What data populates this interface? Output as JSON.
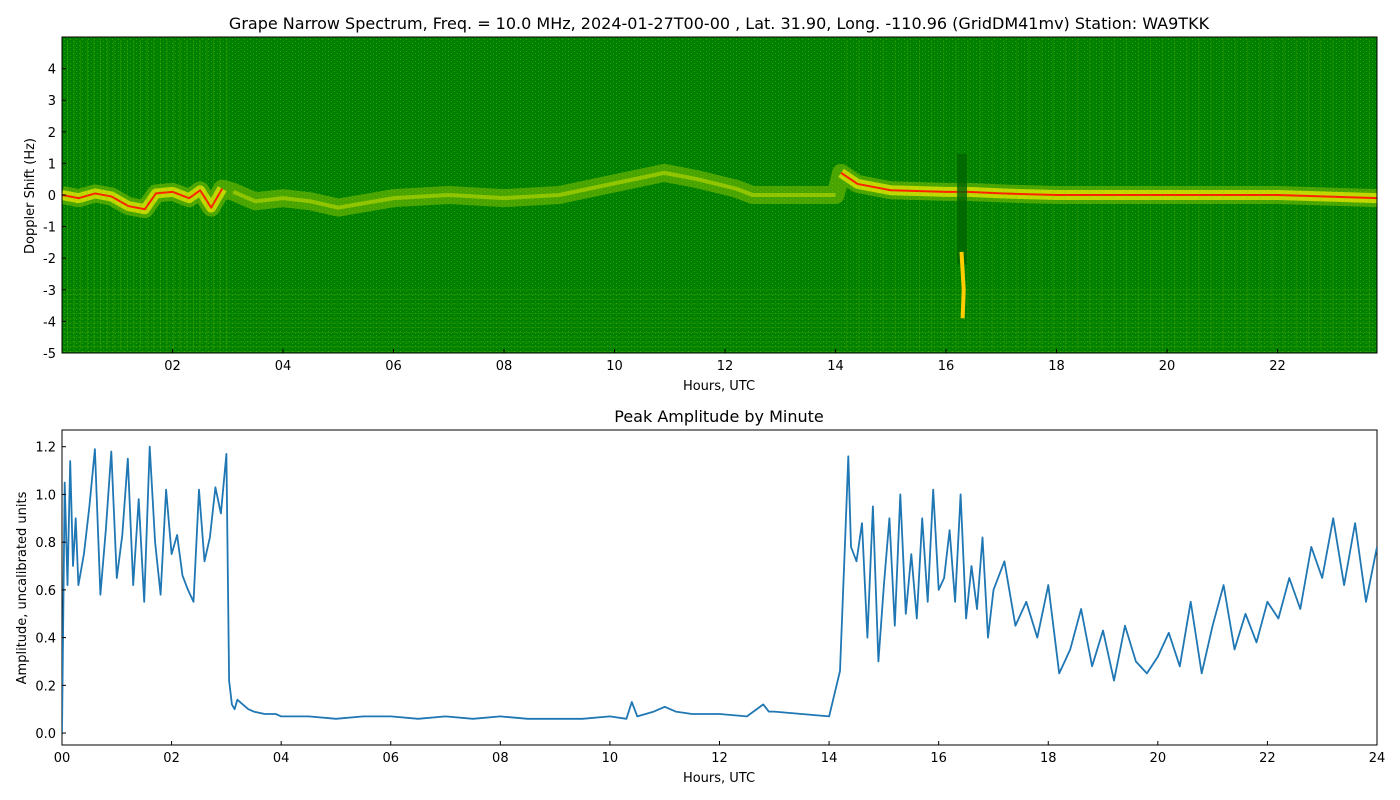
{
  "chart_data": [
    {
      "type": "heatmap",
      "title": "Grape Narrow Spectrum, Freq. = 10.0 MHz, 2024-01-27T00-00 , Lat.  31.90, Long. -110.96 (GridDM41mv) Station: WA9TKK",
      "xlabel": "Hours, UTC",
      "ylabel": "Doppler Shift (Hz)",
      "xlim": [
        0,
        23.8
      ],
      "ylim": [
        -5,
        5
      ],
      "x_ticks": [
        "02",
        "04",
        "06",
        "08",
        "10",
        "12",
        "14",
        "16",
        "18",
        "20",
        "22"
      ],
      "x_tick_values": [
        2,
        4,
        6,
        8,
        10,
        12,
        14,
        16,
        18,
        20,
        22
      ],
      "y_ticks": [
        "-5",
        "-4",
        "-3",
        "-2",
        "-1",
        "0",
        "1",
        "2",
        "3",
        "4"
      ],
      "y_tick_values": [
        -5,
        -4,
        -3,
        -2,
        -1,
        0,
        1,
        2,
        3,
        4
      ],
      "colors": {
        "background": "#008000",
        "mid": "#e6e600",
        "peak": "#ff2000"
      },
      "carrier_trace": [
        [
          0,
          0
        ],
        [
          0.3,
          -0.1
        ],
        [
          0.6,
          0.05
        ],
        [
          0.9,
          -0.05
        ],
        [
          1.2,
          -0.35
        ],
        [
          1.5,
          -0.45
        ],
        [
          1.7,
          0.05
        ],
        [
          2.0,
          0.1
        ],
        [
          2.3,
          -0.1
        ],
        [
          2.5,
          0.15
        ],
        [
          2.7,
          -0.4
        ],
        [
          2.9,
          0.2
        ],
        [
          3.1,
          0.1
        ],
        [
          3.5,
          -0.2
        ],
        [
          4.0,
          -0.1
        ],
        [
          4.5,
          -0.2
        ],
        [
          5.0,
          -0.4
        ],
        [
          6.0,
          -0.1
        ],
        [
          7.0,
          0.0
        ],
        [
          8.0,
          -0.1
        ],
        [
          9.0,
          0.0
        ],
        [
          10.9,
          0.7
        ],
        [
          11.5,
          0.5
        ],
        [
          12.2,
          0.2
        ],
        [
          12.5,
          0.0
        ],
        [
          13.5,
          0.0
        ],
        [
          14.0,
          0.0
        ],
        [
          14.1,
          0.7
        ],
        [
          14.4,
          0.35
        ],
        [
          15.0,
          0.15
        ],
        [
          16.0,
          0.1
        ],
        [
          16.4,
          0.1
        ],
        [
          17.0,
          0.05
        ],
        [
          18.0,
          0.0
        ],
        [
          20.0,
          0.0
        ],
        [
          22.0,
          0.0
        ],
        [
          23.8,
          -0.1
        ]
      ],
      "annotations": [
        "strong trace 00:00-03:00",
        "weak/no trace 03:00-14:00",
        "strong trace 14:10-24:00",
        "break near 16:15-16:30 extending to -4 Hz"
      ]
    },
    {
      "type": "line",
      "title": "Peak Amplitude by Minute",
      "xlabel": "Hours, UTC",
      "ylabel": "Amplitude, uncalibrated units",
      "xlim": [
        0,
        24
      ],
      "ylim": [
        -0.05,
        1.27
      ],
      "x_ticks": [
        "00",
        "02",
        "04",
        "06",
        "08",
        "10",
        "12",
        "14",
        "16",
        "18",
        "20",
        "22",
        "24"
      ],
      "x_tick_values": [
        0,
        2,
        4,
        6,
        8,
        10,
        12,
        14,
        16,
        18,
        20,
        22,
        24
      ],
      "y_ticks": [
        "0.0",
        "0.2",
        "0.4",
        "0.6",
        "0.8",
        "1.0",
        "1.2"
      ],
      "y_tick_values": [
        0,
        0.2,
        0.4,
        0.6,
        0.8,
        1.0,
        1.2
      ],
      "grid": false,
      "color": "#1f77b4",
      "series": [
        {
          "x": [
            0,
            0.05,
            0.1,
            0.15,
            0.2,
            0.25,
            0.3,
            0.4,
            0.5,
            0.6,
            0.7,
            0.8,
            0.9,
            1.0,
            1.1,
            1.2,
            1.3,
            1.4,
            1.5,
            1.6,
            1.7,
            1.8,
            1.9,
            2.0,
            2.1,
            2.2,
            2.3,
            2.4,
            2.5,
            2.6,
            2.7,
            2.8,
            2.9,
            3.0,
            3.05,
            3.1,
            3.15,
            3.2,
            3.3,
            3.4,
            3.5,
            3.7,
            3.9,
            4.0,
            4.5,
            5.0,
            5.5,
            6.0,
            6.5,
            7.0,
            7.5,
            8.0,
            8.5,
            9.0,
            9.5,
            10.0,
            10.3,
            10.4,
            10.5,
            10.8,
            11.0,
            11.2,
            11.5,
            12.0,
            12.5,
            12.8,
            12.9,
            13.0,
            13.5,
            14.0,
            14.2,
            14.3,
            14.35,
            14.4,
            14.5,
            14.6,
            14.7,
            14.8,
            14.9,
            15.0,
            15.1,
            15.2,
            15.3,
            15.4,
            15.5,
            15.6,
            15.7,
            15.8,
            15.9,
            16.0,
            16.1,
            16.2,
            16.3,
            16.4,
            16.5,
            16.6,
            16.7,
            16.8,
            16.9,
            17.0,
            17.2,
            17.4,
            17.6,
            17.8,
            18.0,
            18.2,
            18.4,
            18.6,
            18.8,
            19.0,
            19.2,
            19.4,
            19.6,
            19.8,
            20.0,
            20.2,
            20.4,
            20.6,
            20.8,
            21.0,
            21.2,
            21.4,
            21.6,
            21.8,
            22.0,
            22.2,
            22.4,
            22.6,
            22.8,
            23.0,
            23.2,
            23.4,
            23.6,
            23.8,
            24.0
          ],
          "values": [
            0.0,
            1.05,
            0.62,
            1.14,
            0.7,
            0.9,
            0.62,
            0.75,
            0.95,
            1.19,
            0.58,
            0.85,
            1.18,
            0.65,
            0.83,
            1.15,
            0.62,
            0.98,
            0.55,
            1.2,
            0.8,
            0.58,
            1.02,
            0.75,
            0.83,
            0.66,
            0.6,
            0.55,
            1.02,
            0.72,
            0.82,
            1.03,
            0.92,
            1.17,
            0.22,
            0.12,
            0.1,
            0.14,
            0.12,
            0.1,
            0.09,
            0.08,
            0.08,
            0.07,
            0.07,
            0.06,
            0.07,
            0.07,
            0.06,
            0.07,
            0.06,
            0.07,
            0.06,
            0.06,
            0.06,
            0.07,
            0.06,
            0.13,
            0.07,
            0.09,
            0.11,
            0.09,
            0.08,
            0.08,
            0.07,
            0.12,
            0.09,
            0.09,
            0.08,
            0.07,
            0.26,
            0.85,
            1.16,
            0.78,
            0.72,
            0.88,
            0.4,
            0.95,
            0.3,
            0.62,
            0.9,
            0.45,
            1.0,
            0.5,
            0.75,
            0.48,
            0.9,
            0.55,
            1.02,
            0.6,
            0.65,
            0.85,
            0.55,
            1.0,
            0.48,
            0.7,
            0.52,
            0.82,
            0.4,
            0.6,
            0.72,
            0.45,
            0.55,
            0.4,
            0.62,
            0.25,
            0.35,
            0.52,
            0.28,
            0.43,
            0.22,
            0.45,
            0.3,
            0.25,
            0.32,
            0.42,
            0.28,
            0.55,
            0.25,
            0.45,
            0.62,
            0.35,
            0.5,
            0.38,
            0.55,
            0.48,
            0.65,
            0.52,
            0.78,
            0.65,
            0.9,
            0.62,
            0.88,
            0.55,
            0.78
          ]
        }
      ]
    }
  ]
}
